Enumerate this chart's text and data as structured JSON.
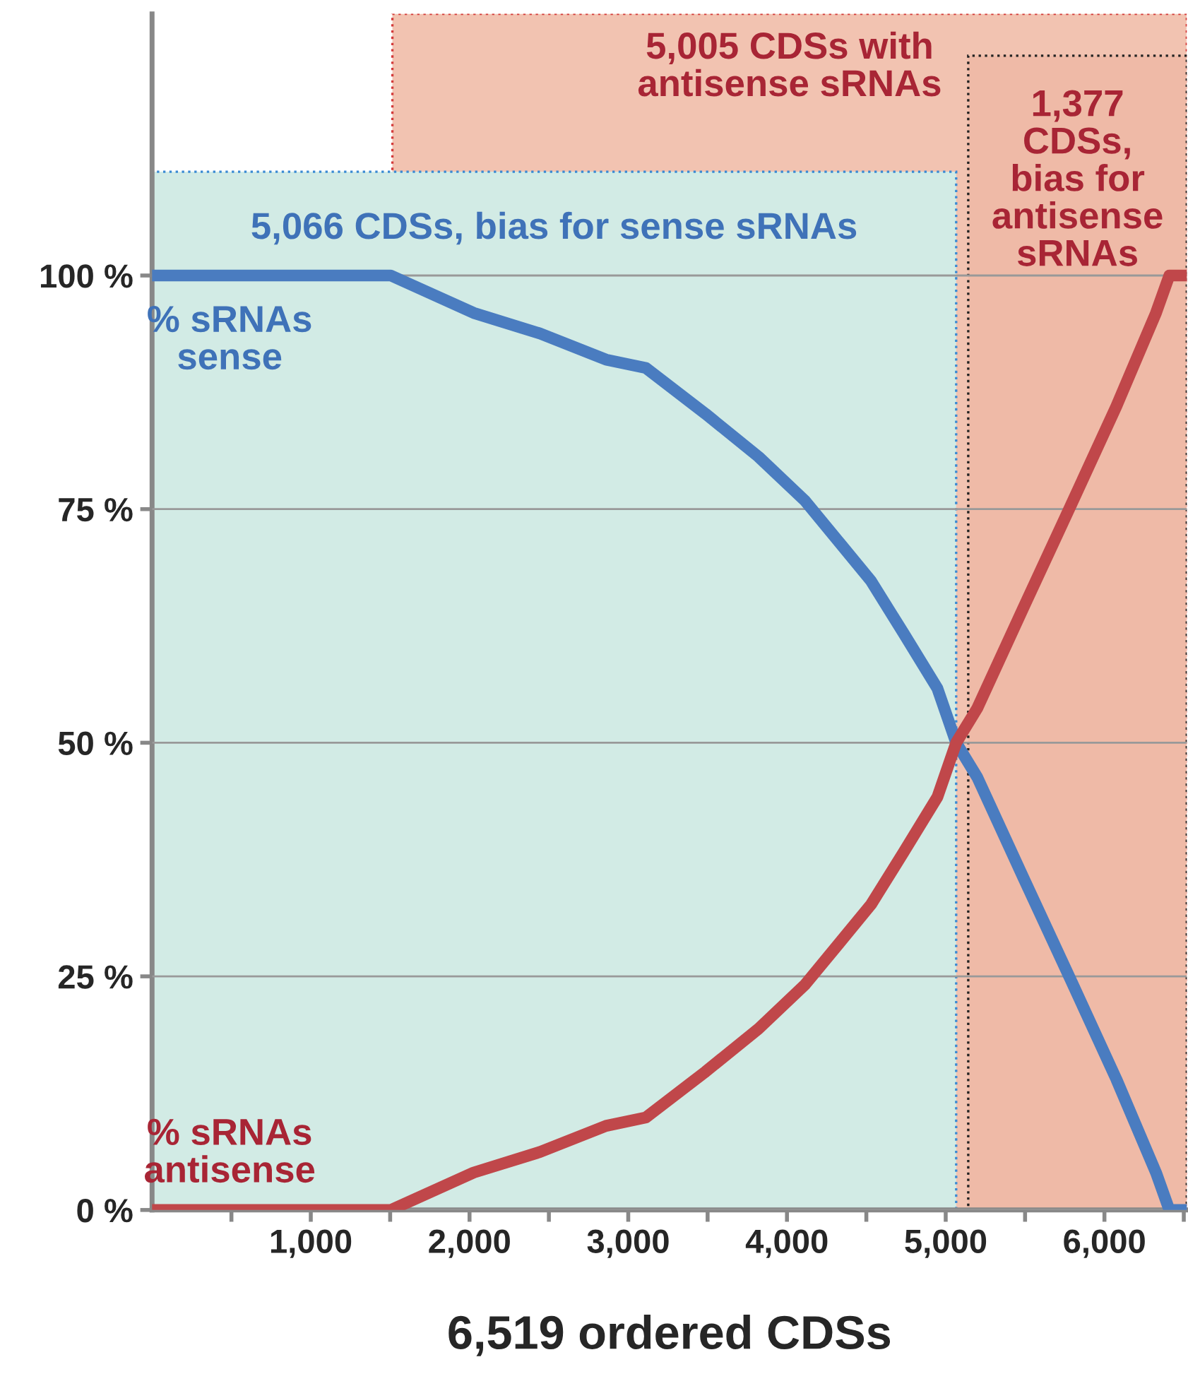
{
  "chart_data": {
    "type": "line",
    "xlabel": "6,519 ordered CDSs",
    "xlim": [
      0,
      6519
    ],
    "ylim": [
      0,
      128
    ],
    "xticks": [
      {
        "value": 500,
        "label": null
      },
      {
        "value": 1000,
        "label": "1,000"
      },
      {
        "value": 1500,
        "label": null
      },
      {
        "value": 2000,
        "label": "2,000"
      },
      {
        "value": 2500,
        "label": null
      },
      {
        "value": 3000,
        "label": "3,000"
      },
      {
        "value": 3500,
        "label": null
      },
      {
        "value": 4000,
        "label": "4,000"
      },
      {
        "value": 4500,
        "label": null
      },
      {
        "value": 5000,
        "label": "5,000"
      },
      {
        "value": 5500,
        "label": null
      },
      {
        "value": 6000,
        "label": "6,000"
      },
      {
        "value": 6500,
        "label": null
      }
    ],
    "yticks": [
      {
        "value": 0,
        "label": "0 %"
      },
      {
        "value": 25,
        "label": "25 %"
      },
      {
        "value": 50,
        "label": "50 %"
      },
      {
        "value": 75,
        "label": "75 %"
      },
      {
        "value": 100,
        "label": "100 %"
      }
    ],
    "grid": "y",
    "legend": false,
    "marker": "none",
    "line_style": "solid",
    "bands": [
      {
        "axis": "x",
        "from": 1514,
        "to": 6519,
        "label": "5,005 CDSs with\nantisense sRNAs",
        "color": "#f2c3b1"
      },
      {
        "axis": "x",
        "from": 0,
        "to": 5066,
        "label": "5,066 CDSs, bias for sense sRNAs",
        "color": "#d2ebe5"
      },
      {
        "axis": "x",
        "from": 5142,
        "to": 6519,
        "label": "1,377\nCDSs,\nbias for\nantisense\nsRNAs",
        "color": "#efbaa7"
      }
    ],
    "series": [
      {
        "name": "% sRNAs\nsense",
        "color": "#4a7cc0",
        "x": [
          0,
          1504,
          2026,
          2443,
          2860,
          3111,
          3487,
          3821,
          4113,
          4322,
          4530,
          4739,
          4948,
          5066,
          5199,
          5491,
          5783,
          6075,
          6325,
          6409,
          6519
        ],
        "values": [
          100,
          100,
          96.0,
          93.8,
          91.0,
          90.1,
          85.2,
          80.6,
          75.9,
          71.6,
          67.3,
          61.6,
          55.8,
          50,
          46.3,
          35.5,
          24.8,
          14.0,
          4.0,
          0,
          0
        ]
      },
      {
        "name": "% sRNAs\nantisense",
        "color": "#c0474a",
        "x": [
          0,
          1504,
          2026,
          2443,
          2860,
          3111,
          3487,
          3821,
          4113,
          4322,
          4530,
          4739,
          4948,
          5066,
          5199,
          5491,
          5783,
          6075,
          6325,
          6409,
          6519
        ],
        "values": [
          0,
          0,
          4.0,
          6.2,
          9.0,
          9.9,
          14.8,
          19.4,
          24.1,
          28.4,
          32.7,
          38.4,
          44.2,
          50,
          53.7,
          64.5,
          75.2,
          86.0,
          96.0,
          100,
          100
        ]
      }
    ]
  }
}
